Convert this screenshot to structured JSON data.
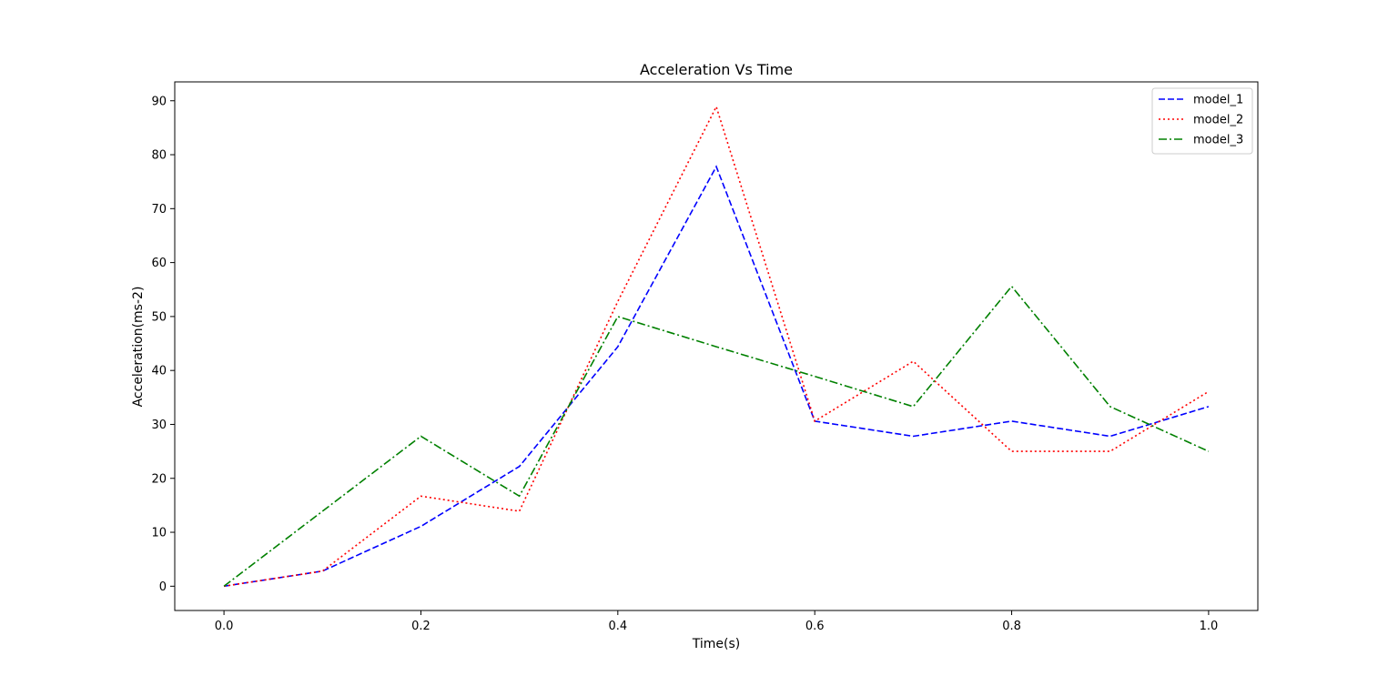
{
  "chart_data": {
    "type": "line",
    "title": "Acceleration Vs Time",
    "xlabel": "Time(s)",
    "ylabel": "Acceleration(ms-2)",
    "x": [
      0.0,
      0.1,
      0.2,
      0.3,
      0.4,
      0.5,
      0.6,
      0.7,
      0.8,
      0.9,
      1.0
    ],
    "xlim": [
      -0.05,
      1.05
    ],
    "ylim": [
      -4.5,
      93.5
    ],
    "xticks": [
      "0.0",
      "0.2",
      "0.4",
      "0.6",
      "0.8",
      "1.0"
    ],
    "yticks": [
      "0",
      "10",
      "20",
      "30",
      "40",
      "50",
      "60",
      "70",
      "80",
      "90"
    ],
    "grid": false,
    "legend_position": "top-right",
    "series": [
      {
        "name": "model_1",
        "color": "#0000ff",
        "style": "dashed",
        "values": [
          0,
          2.8,
          11.1,
          22.2,
          44.4,
          77.8,
          30.6,
          27.8,
          30.6,
          27.8,
          33.3
        ]
      },
      {
        "name": "model_2",
        "color": "#ff0000",
        "style": "dotted",
        "values": [
          0,
          2.8,
          16.7,
          13.9,
          52.8,
          88.9,
          30.6,
          41.7,
          25.0,
          25.0,
          36.1
        ]
      },
      {
        "name": "model_3",
        "color": "#008000",
        "style": "dashdot",
        "values": [
          0,
          13.9,
          27.8,
          16.7,
          50.0,
          44.4,
          38.9,
          33.3,
          55.6,
          33.3,
          25.0
        ]
      }
    ]
  }
}
